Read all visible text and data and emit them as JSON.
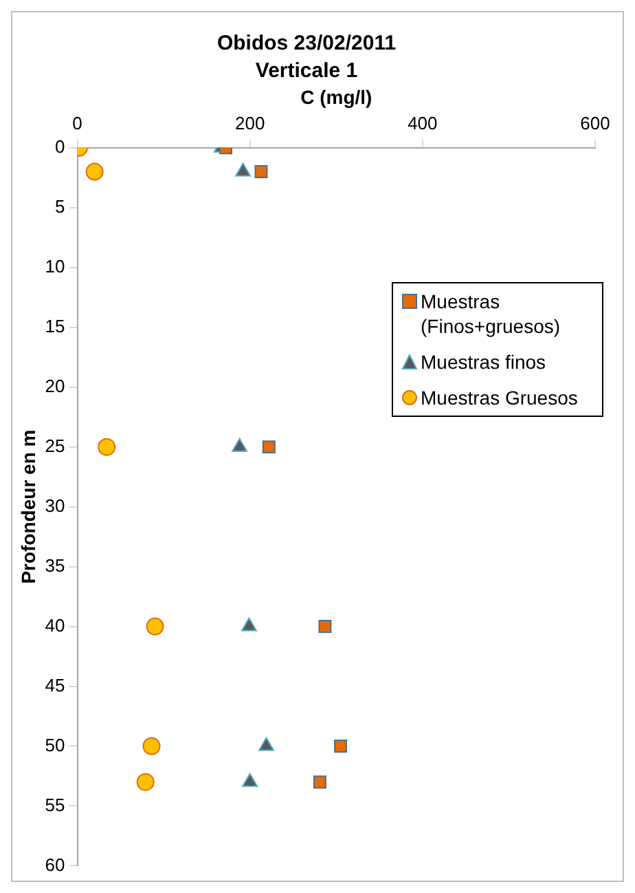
{
  "chart_data": {
    "type": "scatter",
    "title": "Obidos 23/02/2011",
    "subtitle": "Verticale 1",
    "xlabel": "C (mg/l)",
    "ylabel": "Profondeur en m",
    "xlim": [
      0,
      600
    ],
    "xticks": [
      0,
      200,
      400,
      600
    ],
    "ylim": [
      60,
      0
    ],
    "yticks": [
      0,
      5,
      10,
      15,
      20,
      25,
      30,
      35,
      40,
      45,
      50,
      55,
      60
    ],
    "grid": false,
    "legend": "top right",
    "series": [
      {
        "name": "Muestras (Finos+gruesos)",
        "color": "#e46c0a",
        "marker": "square",
        "x": [
          172,
          213,
          222,
          287,
          305,
          281
        ],
        "values": [
          0,
          2,
          25,
          40,
          50,
          53
        ]
      },
      {
        "name": "Muestras finos",
        "color": "#595959",
        "marker": "triangle",
        "x": [
          167,
          192,
          188,
          199,
          219,
          200
        ],
        "values": [
          0,
          2,
          25,
          40,
          50,
          53
        ]
      },
      {
        "name": "Muestras Gruesos",
        "color": "#ffc000",
        "marker": "circle",
        "x": [
          2,
          20,
          34,
          90,
          86,
          79
        ],
        "values": [
          0,
          2,
          25,
          40,
          50,
          53
        ]
      }
    ]
  }
}
